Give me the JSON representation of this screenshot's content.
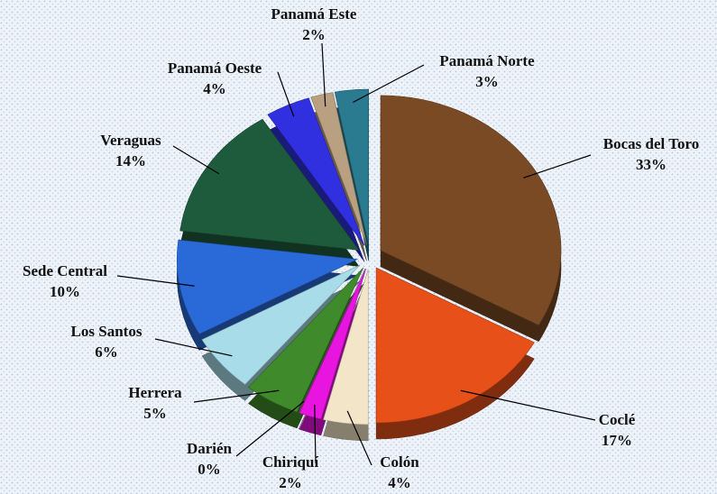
{
  "chart_data": {
    "type": "pie",
    "categories": [
      "Bocas del Toro",
      "Coclé",
      "Colón",
      "Chiriquí",
      "Darién",
      "Herrera",
      "Los Santos",
      "Sede Central",
      "Veraguas",
      "Panamá Oeste",
      "Panamá Este",
      "Panamá Norte"
    ],
    "values": [
      33,
      17,
      4,
      2,
      0,
      5,
      6,
      10,
      14,
      4,
      2,
      3
    ],
    "value_labels": [
      "33%",
      "17%",
      "4%",
      "2%",
      "0%",
      "5%",
      "6%",
      "10%",
      "14%",
      "4%",
      "2%",
      "3%"
    ],
    "colors": [
      "#7a4a24",
      "#e8501a",
      "#f3e6c8",
      "#e815e0",
      "#c050c0",
      "#3f8a2a",
      "#a8dce8",
      "#2a6ad8",
      "#1e5a3c",
      "#3030e0",
      "#b8a080",
      "#2a7a90"
    ]
  }
}
